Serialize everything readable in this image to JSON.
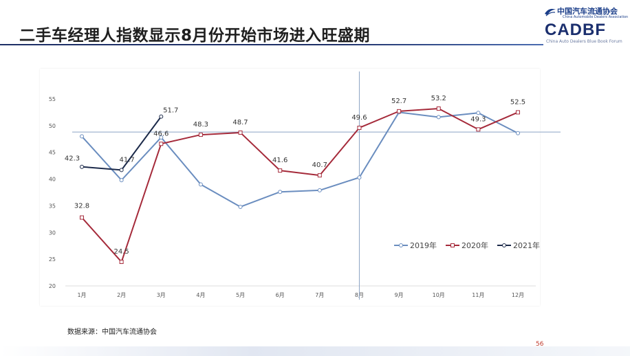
{
  "header": {
    "title": "二手车经理人指数显示8月份开始市场进入旺盛期",
    "logo": {
      "org_cn": "中国汽车流通协会",
      "org_cn_sub": "China Automobile Dealers Association",
      "abbr": "CADBF",
      "org_en": "China Auto Dealers Blue Book Forum"
    }
  },
  "chart_data": {
    "type": "line",
    "categories": [
      "1月",
      "2月",
      "3月",
      "4月",
      "5月",
      "6月",
      "7月",
      "8月",
      "9月",
      "10月",
      "11月",
      "12月"
    ],
    "ylim": [
      20,
      55
    ],
    "yticks": [
      20,
      25,
      30,
      35,
      40,
      45,
      50,
      55
    ],
    "reference_line_y": 48.8,
    "vertical_marker_category": "8月",
    "legend_position": "bottom-right",
    "series": [
      {
        "name": "2019年",
        "color": "#6a8dbf",
        "marker": "circle",
        "values": [
          48,
          39.8,
          47.8,
          39,
          34.8,
          37.6,
          37.9,
          40.3,
          52.5,
          51.6,
          52.4,
          48.6
        ],
        "labels": [
          null,
          null,
          null,
          null,
          null,
          null,
          null,
          null,
          null,
          null,
          null,
          null
        ]
      },
      {
        "name": "2020年",
        "color": "#a52a3a",
        "marker": "square",
        "values": [
          32.8,
          24.5,
          46.6,
          48.3,
          48.7,
          41.6,
          40.7,
          49.6,
          52.7,
          53.2,
          49.3,
          52.5
        ],
        "labels": [
          "32.8",
          "24.5",
          "46.6",
          "48.3",
          "48.7",
          "41.6",
          "40.7",
          "49.6",
          "52.7",
          "53.2",
          "49.3",
          "52.5"
        ]
      },
      {
        "name": "2021年",
        "color": "#1c2a4a",
        "marker": "circle",
        "values": [
          42.3,
          41.7,
          51.7,
          null,
          null,
          null,
          null,
          null,
          null,
          null,
          null,
          null
        ],
        "labels": [
          "42.3",
          "41.7",
          "51.7",
          null,
          null,
          null,
          null,
          null,
          null,
          null,
          null,
          null
        ]
      }
    ]
  },
  "footer": {
    "source": "数据来源：中国汽车流通协会",
    "page_number": "56"
  }
}
